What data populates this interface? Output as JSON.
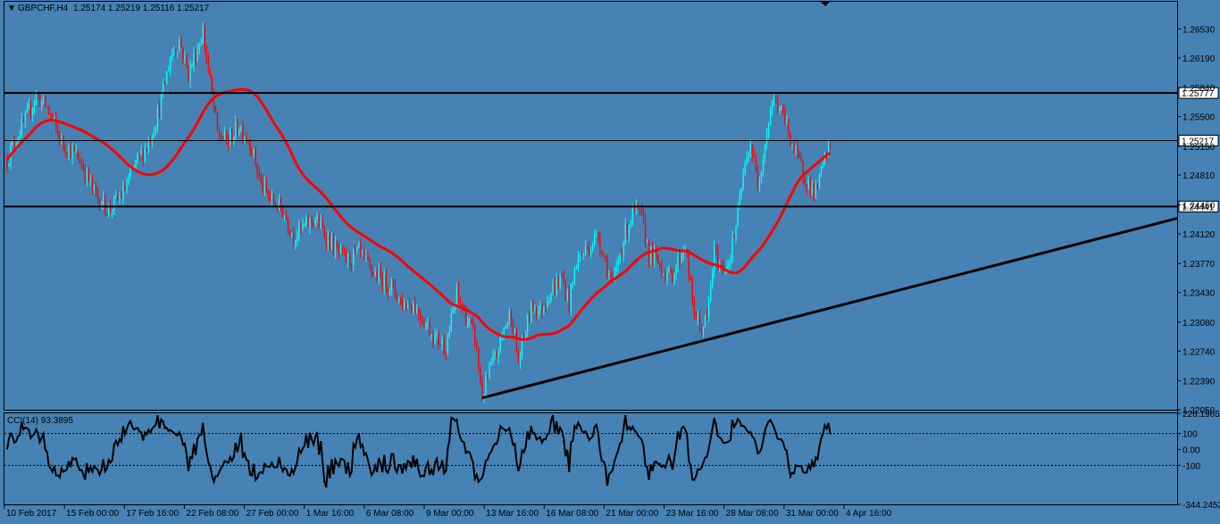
{
  "header": {
    "symbol": "GBPCHF,H4",
    "ohlc": "1.25174 1.25219 1.25116 1.25217"
  },
  "colors": {
    "background": "#4682b4",
    "bull": "#00ffff",
    "bear": "#ff0000",
    "ma": "#ff0000",
    "lines": "#000000"
  },
  "chart_data": [
    {
      "type": "candlestick",
      "title": "GBPCHF,H4 1.25174 1.25219 1.25116 1.25217",
      "ylim": [
        1.2205,
        1.2685
      ],
      "y_ticks": [
        "1.26530",
        "1.26190",
        "1.25840",
        "1.25500",
        "1.25150",
        "1.24810",
        "1.24460",
        "1.24120",
        "1.23770",
        "1.23430",
        "1.23080",
        "1.22740",
        "1.22390",
        "1.22050"
      ],
      "x_labels": [
        "10 Feb 2017",
        "15 Feb 00:00",
        "17 Feb 16:00",
        "22 Feb 08:00",
        "27 Feb 00:00",
        "1 Mar 16:00",
        "6 Mar 08:00",
        "9 Mar 00:00",
        "13 Mar 16:00",
        "16 Mar 08:00",
        "21 Mar 00:00",
        "23 Mar 16:00",
        "28 Mar 08:00",
        "31 Mar 00:00",
        "4 Apr 16:00"
      ],
      "price_keypoints": [
        [
          0,
          1.25
        ],
        [
          6,
          1.253
        ],
        [
          10,
          1.2545
        ],
        [
          16,
          1.2575
        ],
        [
          22,
          1.256
        ],
        [
          30,
          1.252
        ],
        [
          40,
          1.25
        ],
        [
          48,
          1.246
        ],
        [
          56,
          1.244
        ],
        [
          64,
          1.246
        ],
        [
          70,
          1.249
        ],
        [
          78,
          1.252
        ],
        [
          84,
          1.256
        ],
        [
          90,
          1.262
        ],
        [
          95,
          1.264
        ],
        [
          100,
          1.26
        ],
        [
          104,
          1.2625
        ],
        [
          108,
          1.265
        ],
        [
          112,
          1.259
        ],
        [
          116,
          1.253
        ],
        [
          122,
          1.252
        ],
        [
          128,
          1.254
        ],
        [
          134,
          1.252
        ],
        [
          140,
          1.247
        ],
        [
          146,
          1.245
        ],
        [
          152,
          1.244
        ],
        [
          158,
          1.241
        ],
        [
          164,
          1.242
        ],
        [
          170,
          1.243
        ],
        [
          176,
          1.241
        ],
        [
          182,
          1.239
        ],
        [
          188,
          1.238
        ],
        [
          194,
          1.239
        ],
        [
          200,
          1.237
        ],
        [
          206,
          1.236
        ],
        [
          212,
          1.235
        ],
        [
          218,
          1.233
        ],
        [
          224,
          1.233
        ],
        [
          230,
          1.231
        ],
        [
          236,
          1.229
        ],
        [
          242,
          1.228
        ],
        [
          248,
          1.234
        ],
        [
          254,
          1.231
        ],
        [
          258,
          1.229
        ],
        [
          262,
          1.222
        ],
        [
          266,
          1.225
        ],
        [
          270,
          1.227
        ],
        [
          274,
          1.23
        ],
        [
          278,
          1.232
        ],
        [
          282,
          1.226
        ],
        [
          286,
          1.23
        ],
        [
          290,
          1.233
        ],
        [
          294,
          1.232
        ],
        [
          298,
          1.234
        ],
        [
          302,
          1.235
        ],
        [
          306,
          1.236
        ],
        [
          310,
          1.233
        ],
        [
          314,
          1.238
        ],
        [
          318,
          1.239
        ],
        [
          322,
          1.24
        ],
        [
          326,
          1.241
        ],
        [
          330,
          1.238
        ],
        [
          334,
          1.235
        ],
        [
          338,
          1.239
        ],
        [
          342,
          1.242
        ],
        [
          346,
          1.244
        ],
        [
          350,
          1.243
        ],
        [
          354,
          1.239
        ],
        [
          358,
          1.238
        ],
        [
          362,
          1.237
        ],
        [
          366,
          1.236
        ],
        [
          370,
          1.238
        ],
        [
          374,
          1.24
        ],
        [
          378,
          1.233
        ],
        [
          382,
          1.23
        ],
        [
          386,
          1.231
        ],
        [
          390,
          1.239
        ],
        [
          394,
          1.237
        ],
        [
          398,
          1.238
        ],
        [
          402,
          1.242
        ],
        [
          406,
          1.248
        ],
        [
          410,
          1.252
        ],
        [
          414,
          1.247
        ],
        [
          418,
          1.252
        ],
        [
          422,
          1.257
        ],
        [
          426,
          1.256
        ],
        [
          430,
          1.254
        ],
        [
          434,
          1.251
        ],
        [
          438,
          1.249
        ],
        [
          442,
          1.247
        ],
        [
          446,
          1.246
        ],
        [
          450,
          1.249
        ],
        [
          454,
          1.2522
        ]
      ],
      "last_index": 454,
      "ma_period": 50,
      "horizontal_levels": [
        {
          "label": "1.25777",
          "value": 1.25777
        },
        {
          "label": "1.25217",
          "value": 1.25217
        },
        {
          "label": "1.24441",
          "value": 1.24441
        }
      ],
      "trendline": {
        "from": [
          262,
          1.2219
        ],
        "to": [
          654,
          1.2435
        ]
      }
    },
    {
      "type": "line",
      "title": "CCI(14) 93.3895",
      "ylim": [
        -344.2452,
        226.1965
      ],
      "y_ticks": [
        "226.1965",
        "100",
        "0.00",
        "-100",
        "-344.2452"
      ],
      "reference_levels": [
        100,
        -100
      ],
      "last_value": 93.3895
    }
  ]
}
